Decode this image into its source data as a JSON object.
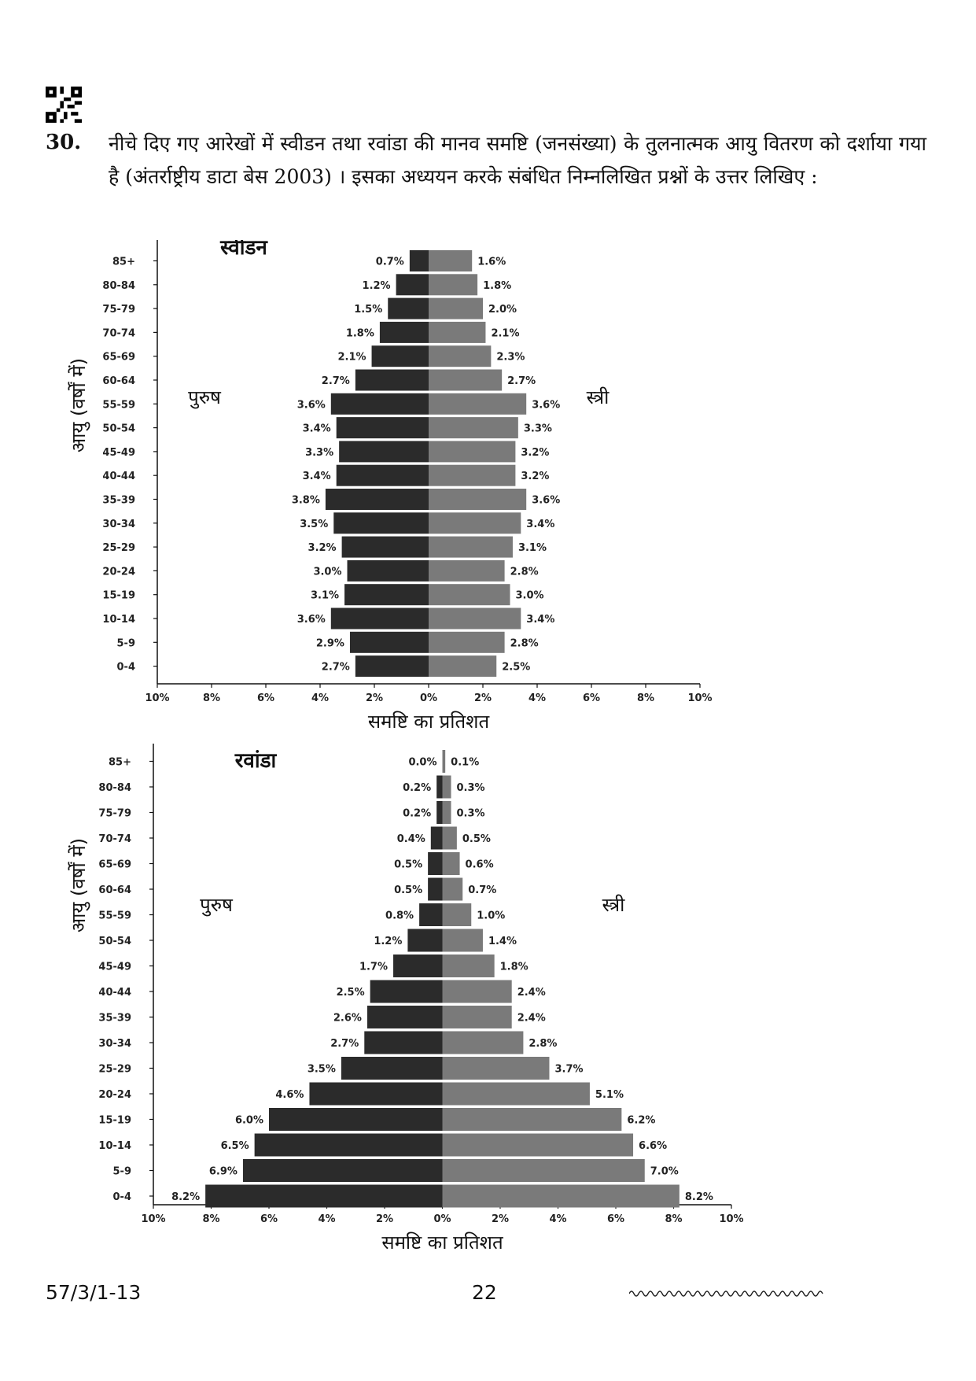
{
  "question": {
    "number": "30.",
    "text": "नीचे दिए गए आरेखों में स्वीडन तथा रवांडा की मानव समष्टि (जनसंख्या) के तुलनात्मक आयु वितरण को दर्शाया गया है (अंतर्राष्ट्रीय डाटा बेस 2003) । इसका अध्ययन करके संबंधित निम्नलिखित प्रश्नों के उत्तर लिखिए :"
  },
  "footer": {
    "code": "57/3/1-13",
    "page": "22"
  },
  "colors": {
    "male": "#2b2b2b",
    "female": "#7a7a7a",
    "axis": "#111111"
  },
  "chart_data": [
    {
      "type": "bar",
      "title": "स्वीडन",
      "xlabel": "समष्टि का प्रतिशत",
      "ylabel": "आयु (वर्षों में)",
      "xlim": [
        -10,
        10
      ],
      "xticks": [
        "10%",
        "8%",
        "6%",
        "4%",
        "2%",
        "0%",
        "2%",
        "4%",
        "6%",
        "8%",
        "10%"
      ],
      "categories": [
        "85+",
        "80-84",
        "75-79",
        "70-74",
        "65-69",
        "60-64",
        "55-59",
        "50-54",
        "45-49",
        "40-44",
        "35-39",
        "30-34",
        "25-29",
        "20-24",
        "15-19",
        "10-14",
        "5-9",
        "0-4"
      ],
      "series": [
        {
          "name": "पुरुष",
          "values": [
            0.7,
            1.2,
            1.5,
            1.8,
            2.1,
            2.7,
            3.6,
            3.4,
            3.3,
            3.4,
            3.8,
            3.5,
            3.2,
            3.0,
            3.1,
            3.6,
            2.9,
            2.7
          ],
          "labels": [
            "0.7%",
            "1.2%",
            "1.5%",
            "1.8%",
            "2.1%",
            "2.7%",
            "3.6%",
            "3.4%",
            "3.3%",
            "3.4%",
            "3.8%",
            "3.5%",
            "3.2%",
            "3.0%",
            "3.1%",
            "3.6%",
            "2.9%",
            "2.7%"
          ]
        },
        {
          "name": "स्त्री",
          "values": [
            1.6,
            1.8,
            2.0,
            2.1,
            2.3,
            2.7,
            3.6,
            3.3,
            3.2,
            3.2,
            3.6,
            3.4,
            3.1,
            2.8,
            3.0,
            3.4,
            2.8,
            2.5
          ],
          "labels": [
            "1.6%",
            "1.8%",
            "2.0%",
            "2.1%",
            "2.3%",
            "2.7%",
            "3.6%",
            "3.3%",
            "3.2%",
            "3.2%",
            "3.6%",
            "3.4%",
            "3.1%",
            "2.8%",
            "3.0%",
            "3.4%",
            "2.8%",
            "2.5%"
          ]
        }
      ]
    },
    {
      "type": "bar",
      "title": "रवांडा",
      "xlabel": "समष्टि का प्रतिशत",
      "ylabel": "आयु (वर्षों में)",
      "xlim": [
        -10,
        10
      ],
      "xticks": [
        "10%",
        "8%",
        "6%",
        "4%",
        "2%",
        "0%",
        "2%",
        "4%",
        "6%",
        "8%",
        "10%"
      ],
      "categories": [
        "85+",
        "80-84",
        "75-79",
        "70-74",
        "65-69",
        "60-64",
        "55-59",
        "50-54",
        "45-49",
        "40-44",
        "35-39",
        "30-34",
        "25-29",
        "20-24",
        "15-19",
        "10-14",
        "5-9",
        "0-4"
      ],
      "series": [
        {
          "name": "पुरुष",
          "values": [
            0.0,
            0.2,
            0.2,
            0.4,
            0.5,
            0.5,
            0.8,
            1.2,
            1.7,
            2.5,
            2.6,
            2.7,
            3.5,
            4.6,
            6.0,
            6.5,
            6.9,
            8.2
          ],
          "labels": [
            "0.0%",
            "0.2%",
            "0.2%",
            "0.4%",
            "0.5%",
            "0.5%",
            "0.8%",
            "1.2%",
            "1.7%",
            "2.5%",
            "2.6%",
            "2.7%",
            "3.5%",
            "4.6%",
            "6.0%",
            "6.5%",
            "6.9%",
            "8.2%"
          ]
        },
        {
          "name": "स्त्री",
          "values": [
            0.1,
            0.3,
            0.3,
            0.5,
            0.6,
            0.7,
            1.0,
            1.4,
            1.8,
            2.4,
            2.4,
            2.8,
            3.7,
            5.1,
            6.2,
            6.6,
            7.0,
            8.2
          ],
          "labels": [
            "0.1%",
            "0.3%",
            "0.3%",
            "0.5%",
            "0.6%",
            "0.7%",
            "1.0%",
            "1.4%",
            "1.8%",
            "2.4%",
            "2.4%",
            "2.8%",
            "3.7%",
            "5.1%",
            "6.2%",
            "6.6%",
            "7.0%",
            "8.2%"
          ]
        }
      ]
    }
  ]
}
